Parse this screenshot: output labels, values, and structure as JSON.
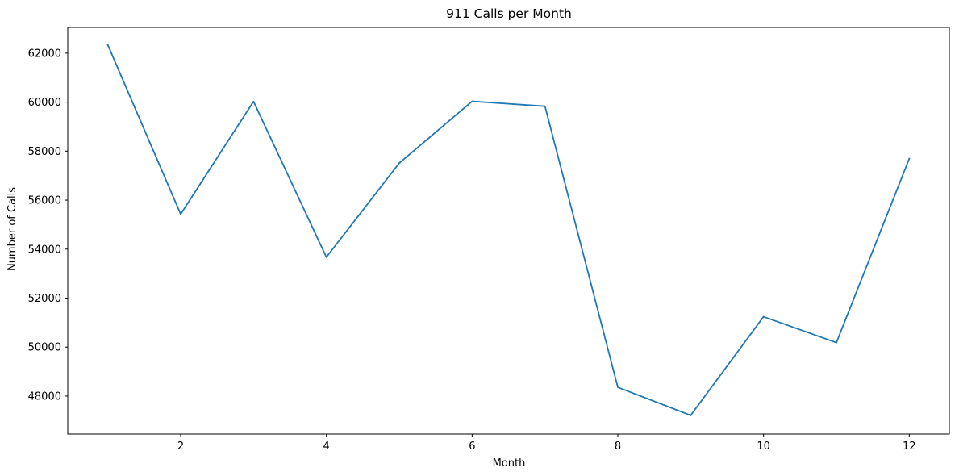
{
  "chart_data": {
    "type": "line",
    "title": "911 Calls per Month",
    "xlabel": "Month",
    "ylabel": "Number of Calls",
    "xlim": [
      0.45,
      12.55
    ],
    "ylim": [
      46450,
      63050
    ],
    "xticks": [
      2,
      4,
      6,
      8,
      10,
      12
    ],
    "yticks": [
      48000,
      50000,
      52000,
      54000,
      56000,
      58000,
      60000,
      62000
    ],
    "grid": false,
    "series": [
      {
        "color": "#1f77b4",
        "x": [
          1,
          2,
          3,
          4,
          5,
          6,
          7,
          8,
          9,
          10,
          11,
          12
        ],
        "y": [
          62336,
          55427,
          60027,
          53671,
          57509,
          60034,
          59832,
          48359,
          47213,
          51240,
          50182,
          57692
        ]
      }
    ]
  }
}
